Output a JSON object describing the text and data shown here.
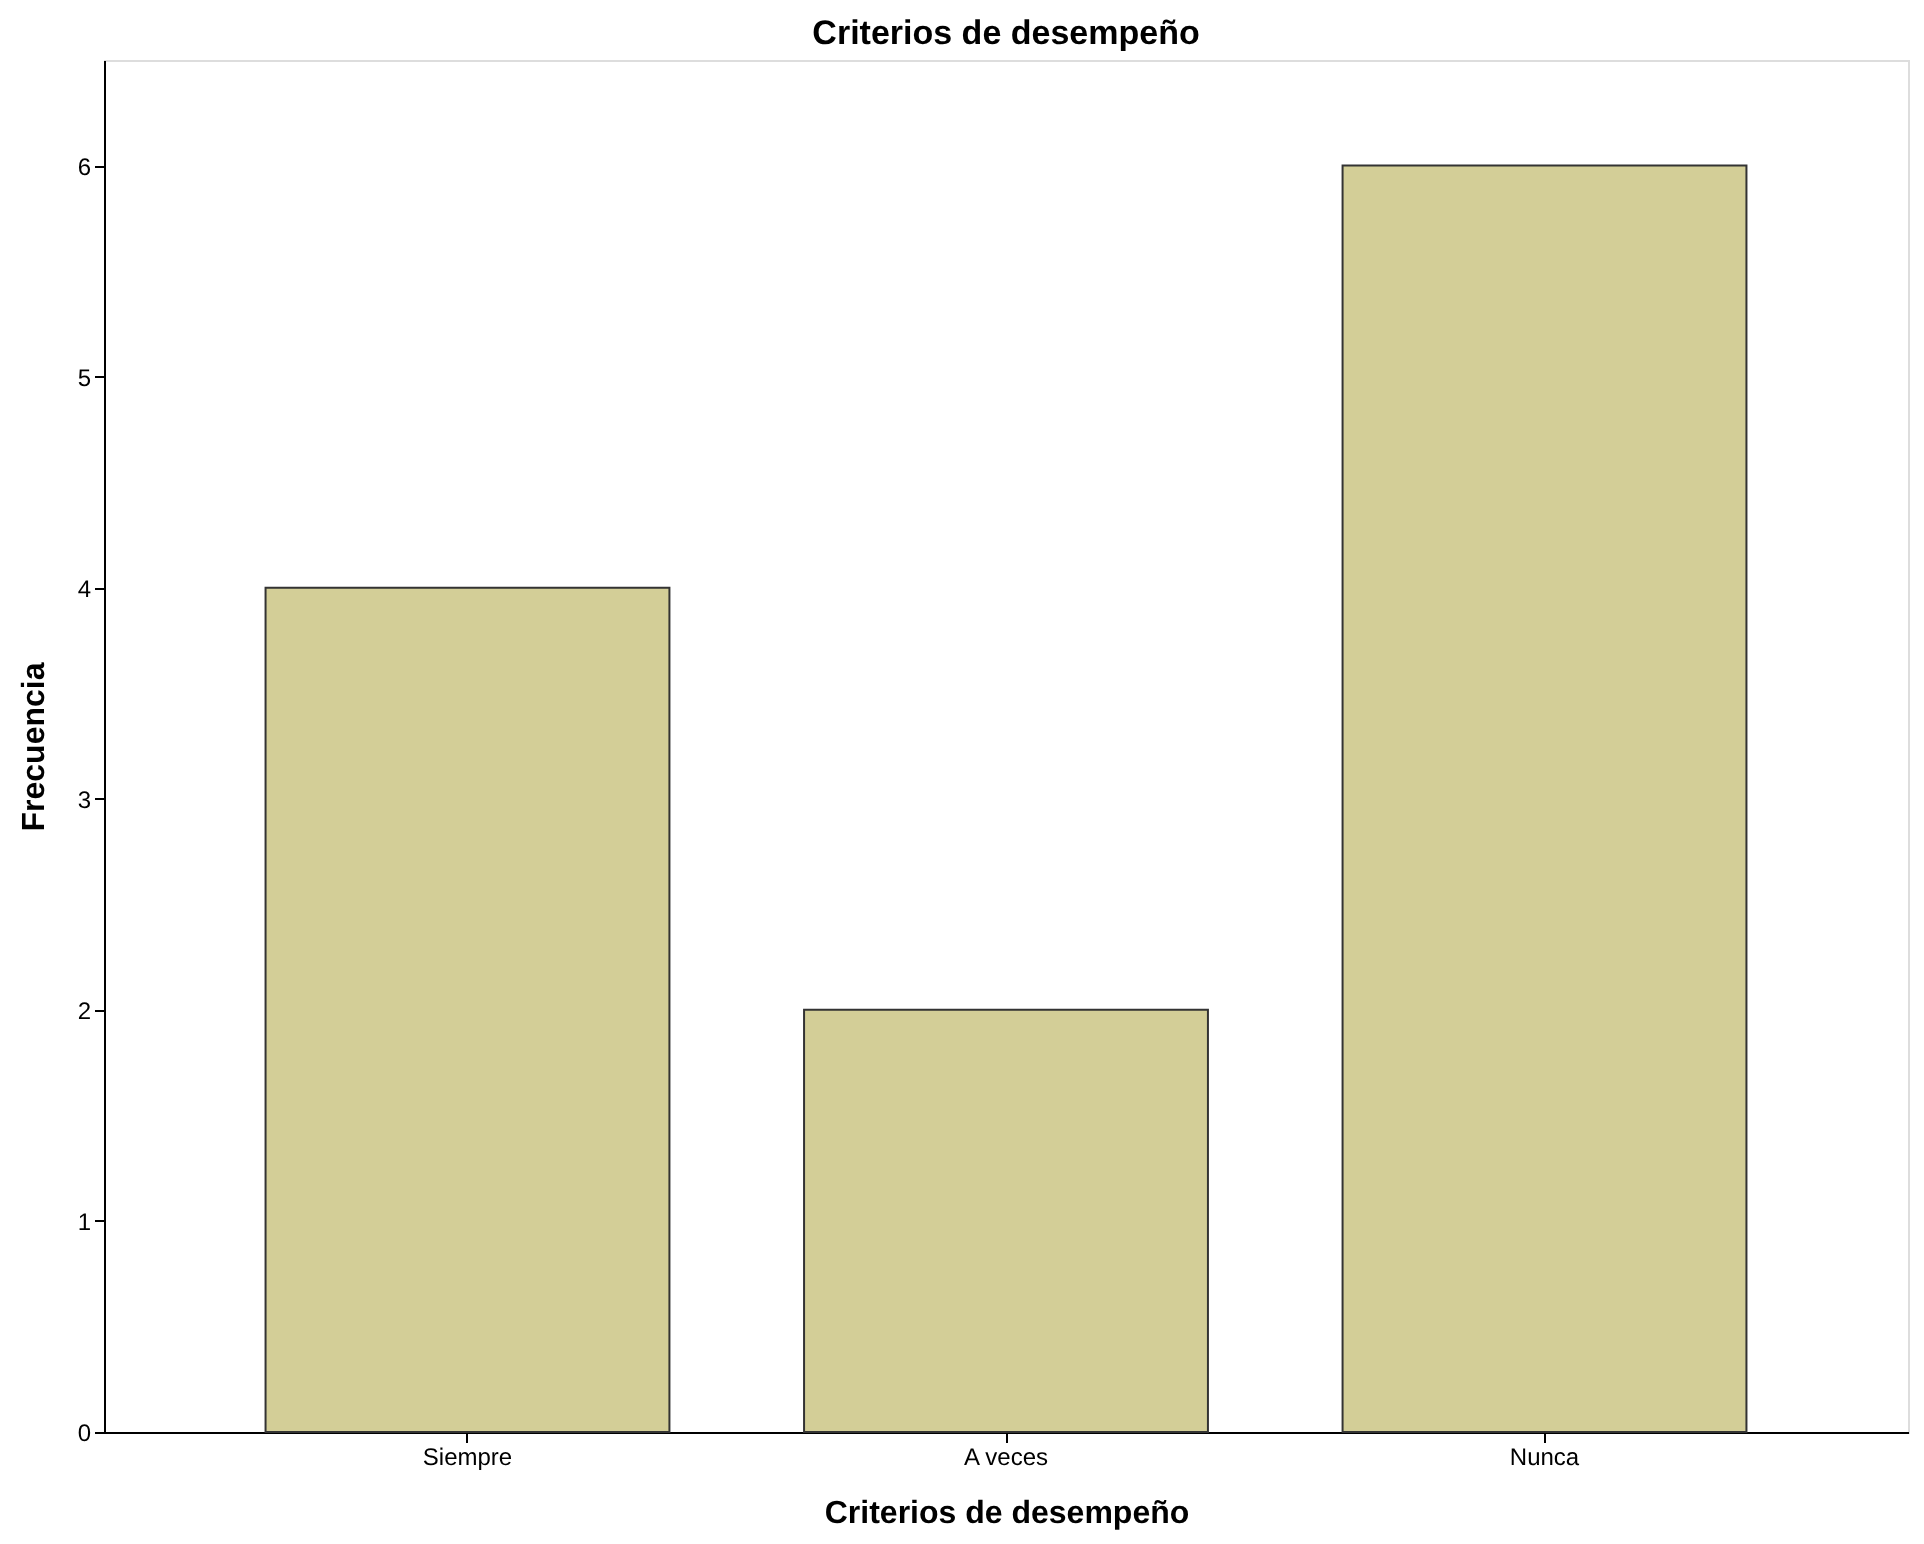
{
  "chart_data": {
    "type": "bar",
    "title": "Criterios de desempeño",
    "xlabel": "Criterios de desempeño",
    "ylabel": "Frecuencia",
    "categories": [
      "Siempre",
      "A veces",
      "Nunca"
    ],
    "values": [
      4,
      2,
      6
    ],
    "color": "#d3ce97",
    "ylim": [
      0,
      6.5
    ],
    "yticks": [
      0,
      1,
      2,
      3,
      4,
      5,
      6
    ],
    "grid": false
  }
}
